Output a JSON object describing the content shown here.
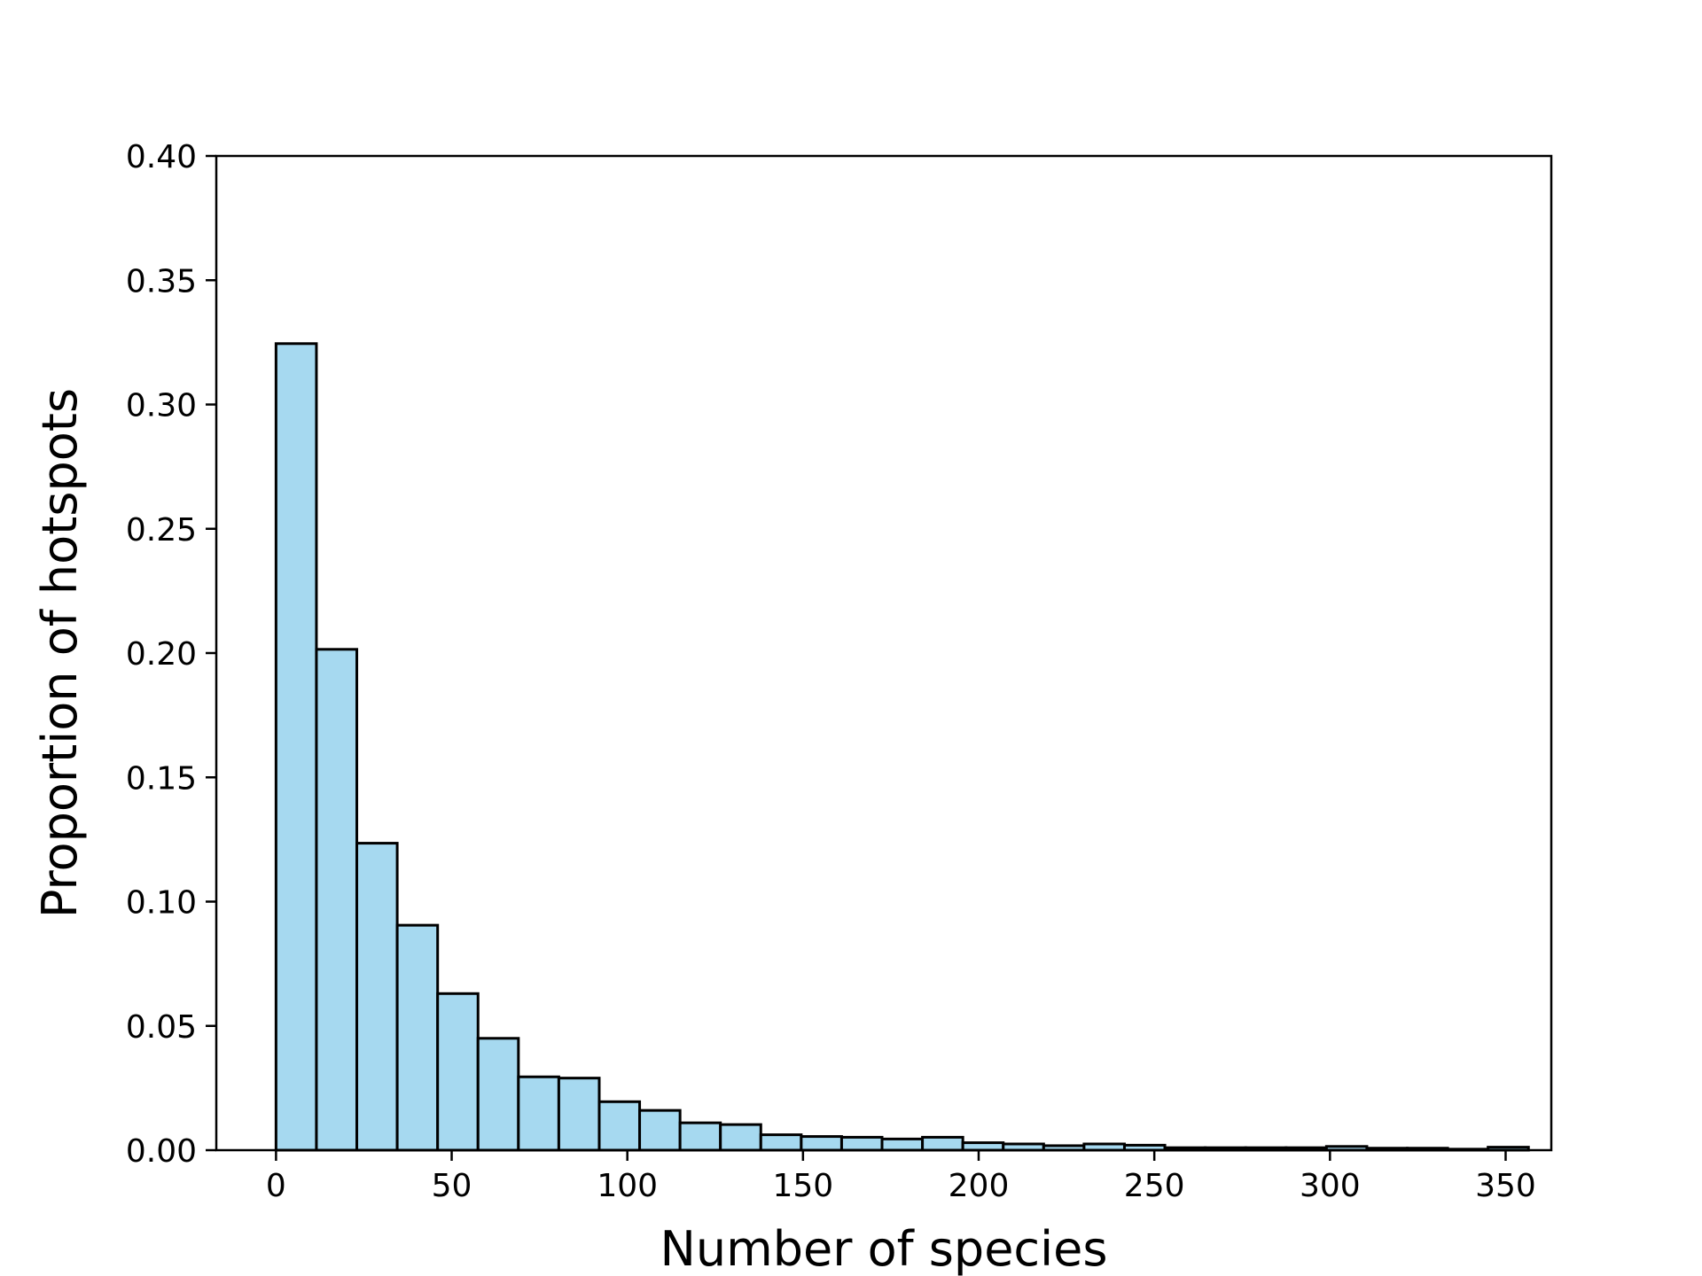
{
  "chart_data": {
    "type": "bar",
    "title": "",
    "xlabel": "Number of species",
    "ylabel": "Proportion of hotspots",
    "xlim": [
      -17,
      363
    ],
    "ylim": [
      0,
      0.4
    ],
    "grid": false,
    "bin_width": 11.5,
    "bin_start": 0,
    "values": [
      0.3245,
      0.2015,
      0.1235,
      0.0905,
      0.063,
      0.045,
      0.0295,
      0.029,
      0.0195,
      0.016,
      0.011,
      0.0103,
      0.0062,
      0.0055,
      0.0052,
      0.0045,
      0.0052,
      0.003,
      0.0025,
      0.0018,
      0.0025,
      0.002,
      0.001,
      0.001,
      0.001,
      0.001,
      0.0015,
      0.0008,
      0.0008,
      0.0004,
      0.0012
    ],
    "x_ticks": [
      0,
      50,
      100,
      150,
      200,
      250,
      300,
      350
    ],
    "x_tick_labels": [
      "0",
      "50",
      "100",
      "150",
      "200",
      "250",
      "300",
      "350"
    ],
    "y_ticks": [
      0,
      0.05,
      0.1,
      0.15,
      0.2,
      0.25,
      0.3,
      0.35,
      0.4
    ],
    "y_tick_labels": [
      "0.00",
      "0.05",
      "0.10",
      "0.15",
      "0.20",
      "0.25",
      "0.30",
      "0.35",
      "0.40"
    ],
    "colors": {
      "bar_fill": "#a6d9f0",
      "bar_edge": "#000000",
      "axes": "#000000"
    }
  }
}
